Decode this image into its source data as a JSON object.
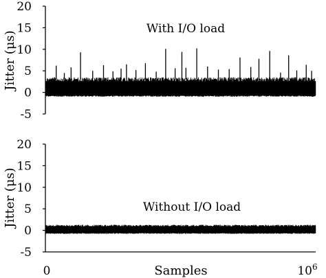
{
  "chart_data": [
    {
      "type": "line",
      "annotation": "With I/O load",
      "ylabel": "Jitter (μs)",
      "xlabel": "",
      "xlim": [
        0,
        1000000
      ],
      "ylim": [
        -5,
        20
      ],
      "yticks": [
        20,
        15,
        10,
        5,
        0,
        -5
      ],
      "ytick_labels": [
        "20",
        "15",
        "10",
        "5",
        "0",
        "-5"
      ],
      "series": [
        {
          "description_values": "dense jitter noise band",
          "band": [
            -1,
            3.5
          ],
          "spikes": [
            [
              40000,
              6.2
            ],
            [
              70000,
              4.5
            ],
            [
              95000,
              5.8
            ],
            [
              130000,
              9.3
            ],
            [
              175000,
              5.0
            ],
            [
              215000,
              6.3
            ],
            [
              250000,
              4.9
            ],
            [
              280000,
              5.5
            ],
            [
              300000,
              6.5
            ],
            [
              335000,
              5.2
            ],
            [
              370000,
              6.8
            ],
            [
              410000,
              4.8
            ],
            [
              445000,
              10.1
            ],
            [
              480000,
              5.6
            ],
            [
              505000,
              9.4
            ],
            [
              520000,
              5.7
            ],
            [
              560000,
              10.2
            ],
            [
              600000,
              6.0
            ],
            [
              640000,
              5.3
            ],
            [
              680000,
              5.4
            ],
            [
              720000,
              8.1
            ],
            [
              760000,
              5.9
            ],
            [
              790000,
              7.8
            ],
            [
              830000,
              9.6
            ],
            [
              870000,
              4.6
            ],
            [
              900000,
              8.6
            ],
            [
              930000,
              5.1
            ],
            [
              965000,
              6.4
            ],
            [
              985000,
              5.0
            ]
          ]
        }
      ]
    },
    {
      "type": "line",
      "annotation": "Without I/O load",
      "ylabel": "Jitter (μs)",
      "xlabel": "Samples",
      "xlim": [
        0,
        1000000
      ],
      "ylim": [
        -5,
        20
      ],
      "yticks": [
        20,
        15,
        10,
        5,
        0,
        -5
      ],
      "ytick_labels": [
        "20",
        "15",
        "10",
        "5",
        "0",
        "-5"
      ],
      "xtick_labels": [
        "0",
        "10"
      ],
      "xtick_sup": "6",
      "series": [
        {
          "band": [
            -0.8,
            1.3
          ],
          "spikes": []
        }
      ]
    }
  ]
}
